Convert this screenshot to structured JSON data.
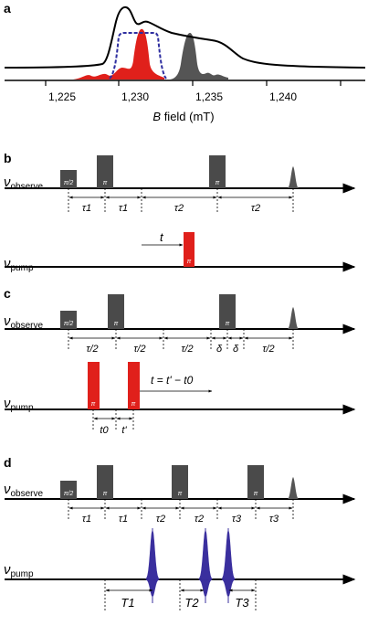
{
  "panel_a": {
    "letter": "a",
    "x_ticks": [
      "1,225",
      "1,230",
      "1,235",
      "1,240"
    ],
    "xlabel_var": "B",
    "xlabel_rest": " field (mT)"
  },
  "panel_b": {
    "letter": "b",
    "observe_sub": "observe",
    "pump_sub": "pump",
    "pulse_labels": [
      "π/2",
      "π",
      "π"
    ],
    "pump_pulse_label": "π",
    "seg_labels": [
      "τ1",
      "τ1",
      "τ2",
      "τ2"
    ],
    "t_label": "t"
  },
  "panel_c": {
    "letter": "c",
    "observe_sub": "observe",
    "pump_sub": "pump",
    "pulse_labels": [
      "π/2",
      "π",
      "π"
    ],
    "pump_pulse_labels": [
      "π",
      "π"
    ],
    "seg_labels": [
      "τ/2",
      "τ/2",
      "τ/2",
      "δ",
      "δ",
      "τ/2"
    ],
    "t0_label": "t0",
    "tprime_label": "t'",
    "t_eq": "t = t' − t0"
  },
  "panel_d": {
    "letter": "d",
    "observe_sub": "observe",
    "pump_sub": "pump",
    "pulse_labels": [
      "π/2",
      "π",
      "π",
      "π"
    ],
    "seg_labels": [
      "τ1",
      "τ1",
      "τ2",
      "τ2",
      "τ3",
      "τ3"
    ],
    "T_labels": [
      "T1",
      "T2",
      "T3"
    ]
  },
  "nu": "ν",
  "colors": {
    "pulse": "#4a4a4a",
    "pump": "#e0201b",
    "chirp": "#3a2f9e",
    "window": "#2e2ea0"
  }
}
